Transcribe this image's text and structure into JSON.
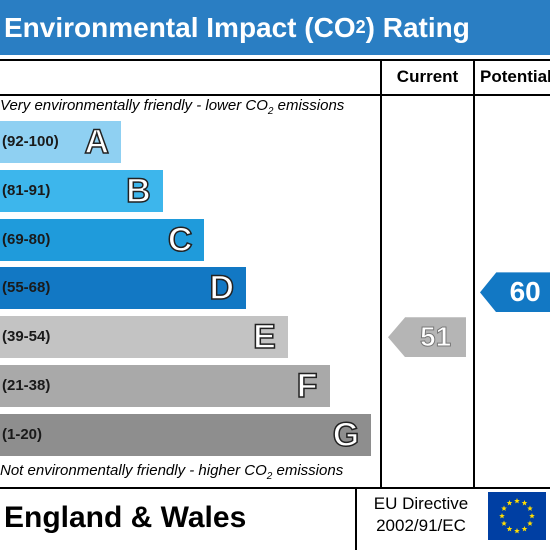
{
  "header": {
    "title_prefix": "Environmental Impact (CO",
    "title_sub": "2",
    "title_suffix": ") Rating"
  },
  "columns": {
    "current": "Current",
    "potential": "Potential"
  },
  "captions": {
    "top_prefix": "Very environmentally friendly - lower CO",
    "top_sub": "2",
    "top_suffix": " emissions",
    "bottom_prefix": "Not environmentally friendly - higher CO",
    "bottom_sub": "2",
    "bottom_suffix": " emissions"
  },
  "footer": {
    "region": "England & Wales",
    "directive_line1": "EU Directive",
    "directive_line2": "2002/91/EC"
  },
  "colors": {
    "title_bar": "#2a7ec3",
    "arrow": "#b0b0b0",
    "eu_flag": "#003fa3",
    "eu_stars": "#ffdd00"
  },
  "chart_data": {
    "type": "bar",
    "categories": [
      "A",
      "B",
      "C",
      "D",
      "E",
      "F",
      "G"
    ],
    "bands": [
      {
        "letter": "A",
        "range": "(92-100)",
        "color": "#8fd0f2"
      },
      {
        "letter": "B",
        "range": "(81-91)",
        "color": "#3db6ec"
      },
      {
        "letter": "C",
        "range": "(69-80)",
        "color": "#1f9bdb"
      },
      {
        "letter": "D",
        "range": "(55-68)",
        "color": "#1278c4"
      },
      {
        "letter": "E",
        "range": "(39-54)",
        "color": "#c3c3c3"
      },
      {
        "letter": "F",
        "range": "(21-38)",
        "color": "#a9a9a9"
      },
      {
        "letter": "G",
        "range": "(1-20)",
        "color": "#8e8e8e"
      }
    ],
    "current": {
      "value": 51,
      "band": "E",
      "color": "#b5b5b5"
    },
    "potential": {
      "value": 60,
      "band": "D",
      "color": "#1278c4"
    }
  }
}
